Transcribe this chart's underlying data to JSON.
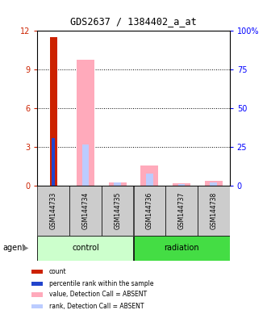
{
  "title": "GDS2637 / 1384402_a_at",
  "samples": [
    "GSM144733",
    "GSM144734",
    "GSM144735",
    "GSM144736",
    "GSM144737",
    "GSM144738"
  ],
  "ylim_left": [
    0,
    12
  ],
  "ylim_right": [
    0,
    100
  ],
  "yticks_left": [
    0,
    3,
    6,
    9,
    12
  ],
  "yticks_right": [
    0,
    25,
    50,
    75,
    100
  ],
  "ytick_labels_left": [
    "0",
    "3",
    "6",
    "9",
    "12"
  ],
  "ytick_labels_right": [
    "0",
    "25",
    "50",
    "75",
    "100%"
  ],
  "count_bars": [
    11.5,
    0,
    0,
    0,
    0,
    0
  ],
  "percentile_bars_pct": [
    31.0,
    0,
    0,
    0,
    0,
    0
  ],
  "absent_value_bars": [
    0,
    9.8,
    0.3,
    1.6,
    0.2,
    0.4
  ],
  "absent_rank_bars_pct": [
    0,
    27.0,
    2.5,
    8.0,
    1.5,
    2.5
  ],
  "count_color": "#cc2200",
  "percentile_color": "#2244cc",
  "absent_value_color": "#ffaabb",
  "absent_rank_color": "#bbccff",
  "group_control_color": "#ccffcc",
  "group_radiation_color": "#44dd44",
  "sample_box_color": "#cccccc",
  "agent_label": "agent",
  "legend_items": [
    {
      "label": "count",
      "color": "#cc2200"
    },
    {
      "label": "percentile rank within the sample",
      "color": "#2244cc"
    },
    {
      "label": "value, Detection Call = ABSENT",
      "color": "#ffaabb"
    },
    {
      "label": "rank, Detection Call = ABSENT",
      "color": "#bbccff"
    }
  ]
}
